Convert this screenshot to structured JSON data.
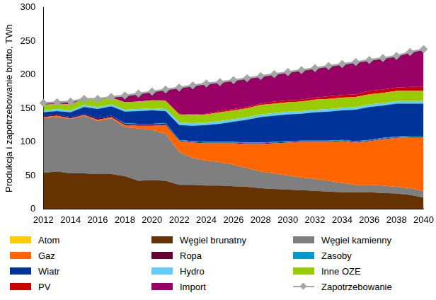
{
  "chart_data": {
    "type": "area",
    "stacked": true,
    "grid": false,
    "legend": "bottom",
    "y_label": "Produkcja i zapotrzebowanie brutto, TWh",
    "ylim": [
      0,
      300
    ],
    "yticks": [
      0,
      50,
      100,
      150,
      200,
      250,
      300
    ],
    "categories": [
      "2012",
      null,
      "2014",
      null,
      "2016",
      null,
      "2018",
      null,
      "2020",
      null,
      "2022",
      null,
      "2024",
      null,
      "2026",
      null,
      "2028",
      null,
      "2030",
      null,
      "2032",
      null,
      "2034",
      null,
      "2036",
      null,
      "2038",
      null,
      "2040"
    ],
    "series": [
      {
        "name": "Atom",
        "color": "#ffcc00",
        "values": [
          0,
          0,
          0,
          0,
          0,
          0,
          0,
          0,
          0,
          0,
          0,
          0,
          0,
          0,
          0,
          0,
          0,
          0,
          0,
          0,
          0,
          0,
          0,
          0,
          0,
          0,
          0,
          0,
          0
        ]
      },
      {
        "name": "Węgiel brunatny",
        "color": "#663300",
        "values": [
          54,
          56,
          53,
          53,
          52,
          52,
          49,
          42,
          43,
          42,
          36,
          36,
          35,
          35,
          34,
          33,
          31,
          30,
          29,
          28,
          27,
          26,
          25,
          25,
          25,
          24,
          23,
          21,
          17
        ]
      },
      {
        "name": "Węgiel kamienny",
        "color": "#7f7f7f",
        "values": [
          81,
          81,
          81,
          86,
          79,
          83,
          73,
          78,
          75,
          70,
          49,
          40,
          37,
          35,
          32,
          28,
          25,
          23,
          21,
          19,
          18,
          16,
          14,
          11,
          11,
          11,
          10,
          10,
          10
        ]
      },
      {
        "name": "Gaz",
        "color": "#ff6600",
        "values": [
          2,
          2,
          1,
          1,
          2,
          2,
          3,
          4,
          6,
          13,
          16,
          23,
          26,
          28,
          32,
          36,
          41,
          45,
          49,
          53,
          55,
          58,
          62,
          63,
          65,
          69,
          73,
          76,
          80
        ]
      },
      {
        "name": "Ropa",
        "color": "#660033",
        "values": [
          2,
          2,
          2,
          2,
          2,
          2,
          2,
          2,
          2,
          2,
          1,
          1,
          1,
          1,
          1,
          1,
          1,
          1,
          1,
          1,
          1,
          1,
          1,
          1,
          1,
          1,
          1,
          1,
          1
        ]
      },
      {
        "name": "Zasoby",
        "color": "#0099cc",
        "values": [
          0,
          0,
          0,
          0,
          0,
          0,
          1,
          1,
          1,
          1,
          1,
          1,
          1,
          1,
          1,
          1,
          1,
          1,
          1,
          1,
          1,
          1,
          1,
          1,
          1,
          1,
          1,
          1,
          1
        ]
      },
      {
        "name": "Wiatr",
        "color": "#003399",
        "values": [
          5,
          5,
          7,
          10,
          14,
          14,
          17,
          19,
          20,
          18,
          22,
          23,
          25,
          27,
          30,
          34,
          38,
          39,
          40,
          40,
          42,
          43,
          44,
          47,
          49,
          48,
          49,
          48,
          48
        ]
      },
      {
        "name": "Hydro",
        "color": "#66ccff",
        "values": [
          3,
          3,
          3,
          3,
          3,
          3,
          3,
          3,
          3,
          3,
          4,
          4,
          4,
          4,
          4,
          4,
          4,
          4,
          4,
          4,
          4,
          4,
          4,
          4,
          4,
          4,
          4,
          4,
          4
        ]
      },
      {
        "name": "Inne OZE",
        "color": "#99cc00",
        "values": [
          8,
          8,
          9,
          9,
          10,
          10,
          11,
          11,
          12,
          12,
          12,
          12,
          12,
          13,
          13,
          13,
          14,
          14,
          14,
          14,
          15,
          15,
          15,
          15,
          15,
          15,
          15,
          15,
          15
        ]
      },
      {
        "name": "PV",
        "color": "#cc0000",
        "values": [
          0,
          0,
          0,
          0,
          0,
          0,
          0,
          0,
          0,
          1,
          1,
          1,
          1,
          2,
          2,
          2,
          2,
          3,
          3,
          3,
          3,
          4,
          4,
          4,
          5,
          5,
          5,
          6,
          6
        ]
      },
      {
        "name": "Import",
        "color": "#990066",
        "values": [
          3,
          2,
          4,
          0,
          2,
          1,
          10,
          12,
          13,
          16,
          39,
          43,
          45,
          43,
          43,
          43,
          41,
          41,
          42,
          44,
          44,
          45,
          46,
          48,
          46,
          47,
          47,
          52,
          56
        ]
      },
      {
        "name": "Zapotrzebowanie",
        "color": "#a6a6a6",
        "type": "line",
        "marker": "diamond",
        "values": [
          158,
          159,
          160,
          164,
          164,
          167,
          169,
          172,
          175,
          178,
          181,
          184,
          187,
          189,
          192,
          195,
          198,
          201,
          204,
          207,
          210,
          213,
          216,
          219,
          222,
          225,
          228,
          234,
          238
        ]
      }
    ]
  }
}
